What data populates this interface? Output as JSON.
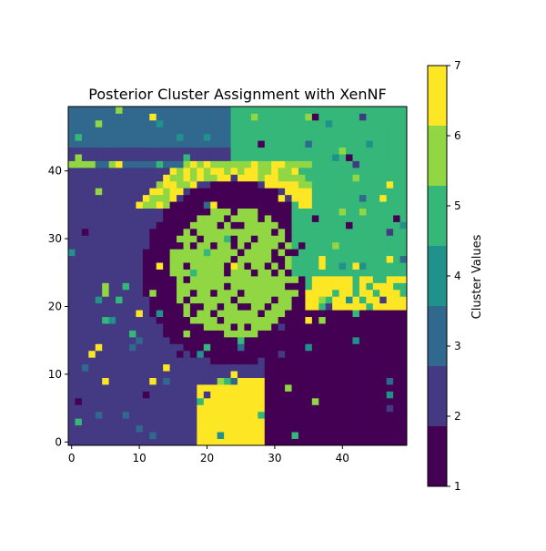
{
  "chart_data": {
    "type": "heatmap",
    "title": "Posterior Cluster Assignment with XenNF",
    "xlabel": "",
    "ylabel": "",
    "xlim": [
      -0.5,
      49.5
    ],
    "ylim": [
      -0.5,
      49.5
    ],
    "x_ticks": [
      "0",
      "10",
      "20",
      "30",
      "40"
    ],
    "y_ticks": [
      "0",
      "10",
      "20",
      "30",
      "40"
    ],
    "grid_size": [
      50,
      50
    ],
    "value_range": [
      1,
      7
    ],
    "colormap": "viridis (discrete, 7 levels)",
    "colorbar": {
      "label": "Cluster Values",
      "ticks": [
        "1",
        "2",
        "3",
        "4",
        "5",
        "6",
        "7"
      ],
      "levels": [
        "#440154",
        "#443983",
        "#31688e",
        "#21918c",
        "#35b779",
        "#90d743",
        "#fde725"
      ]
    },
    "regions_description": [
      "Rows 0-10: dark purple (1) on right, indigo (2) on left, yellow (7) patch at columns 19-28",
      "Rows 11-22: indigo (2) left, dark purple (1) right",
      "Rows 13-33: light green (6) disc centered near (24,25) inside dark purple (1) ring",
      "Rows 20-24: yellow (7) band at columns 35-49",
      "Rows 25-41: green (5) region at top right, columns 33-49",
      "Rows 35-41: yellow/green (7,6) ring band across columns 0-35",
      "Rows 42-49: steel blue (3) at top left, green (5) at top right"
    ]
  }
}
